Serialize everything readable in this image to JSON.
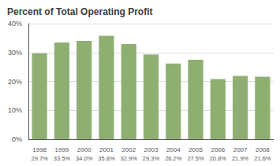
{
  "chart_data": {
    "type": "bar",
    "title": "Percent of Total Operating Profit",
    "categories": [
      "1998",
      "1999",
      "2000",
      "2001",
      "2002",
      "2003",
      "2004",
      "2005",
      "2006",
      "2007",
      "2008"
    ],
    "values": [
      29.7,
      33.5,
      34.0,
      35.8,
      32.9,
      29.3,
      26.2,
      27.5,
      20.8,
      21.9,
      21.6
    ],
    "value_labels": [
      "29.7%",
      "33.5%",
      "34.0%",
      "35.8%",
      "32.9%",
      "29.3%",
      "26.2%",
      "27.5%",
      "20.8%",
      "21.9%",
      "21.6%"
    ],
    "data_labels": true,
    "color": "#8faf72",
    "ylim": [
      0,
      40
    ],
    "yticks": [
      {
        "value": 0,
        "label": "0%"
      },
      {
        "value": 10,
        "label": "10%"
      },
      {
        "value": 20,
        "label": "20%"
      },
      {
        "value": 30,
        "label": "30%"
      },
      {
        "value": 40,
        "label": "40%"
      }
    ],
    "grid": true
  }
}
